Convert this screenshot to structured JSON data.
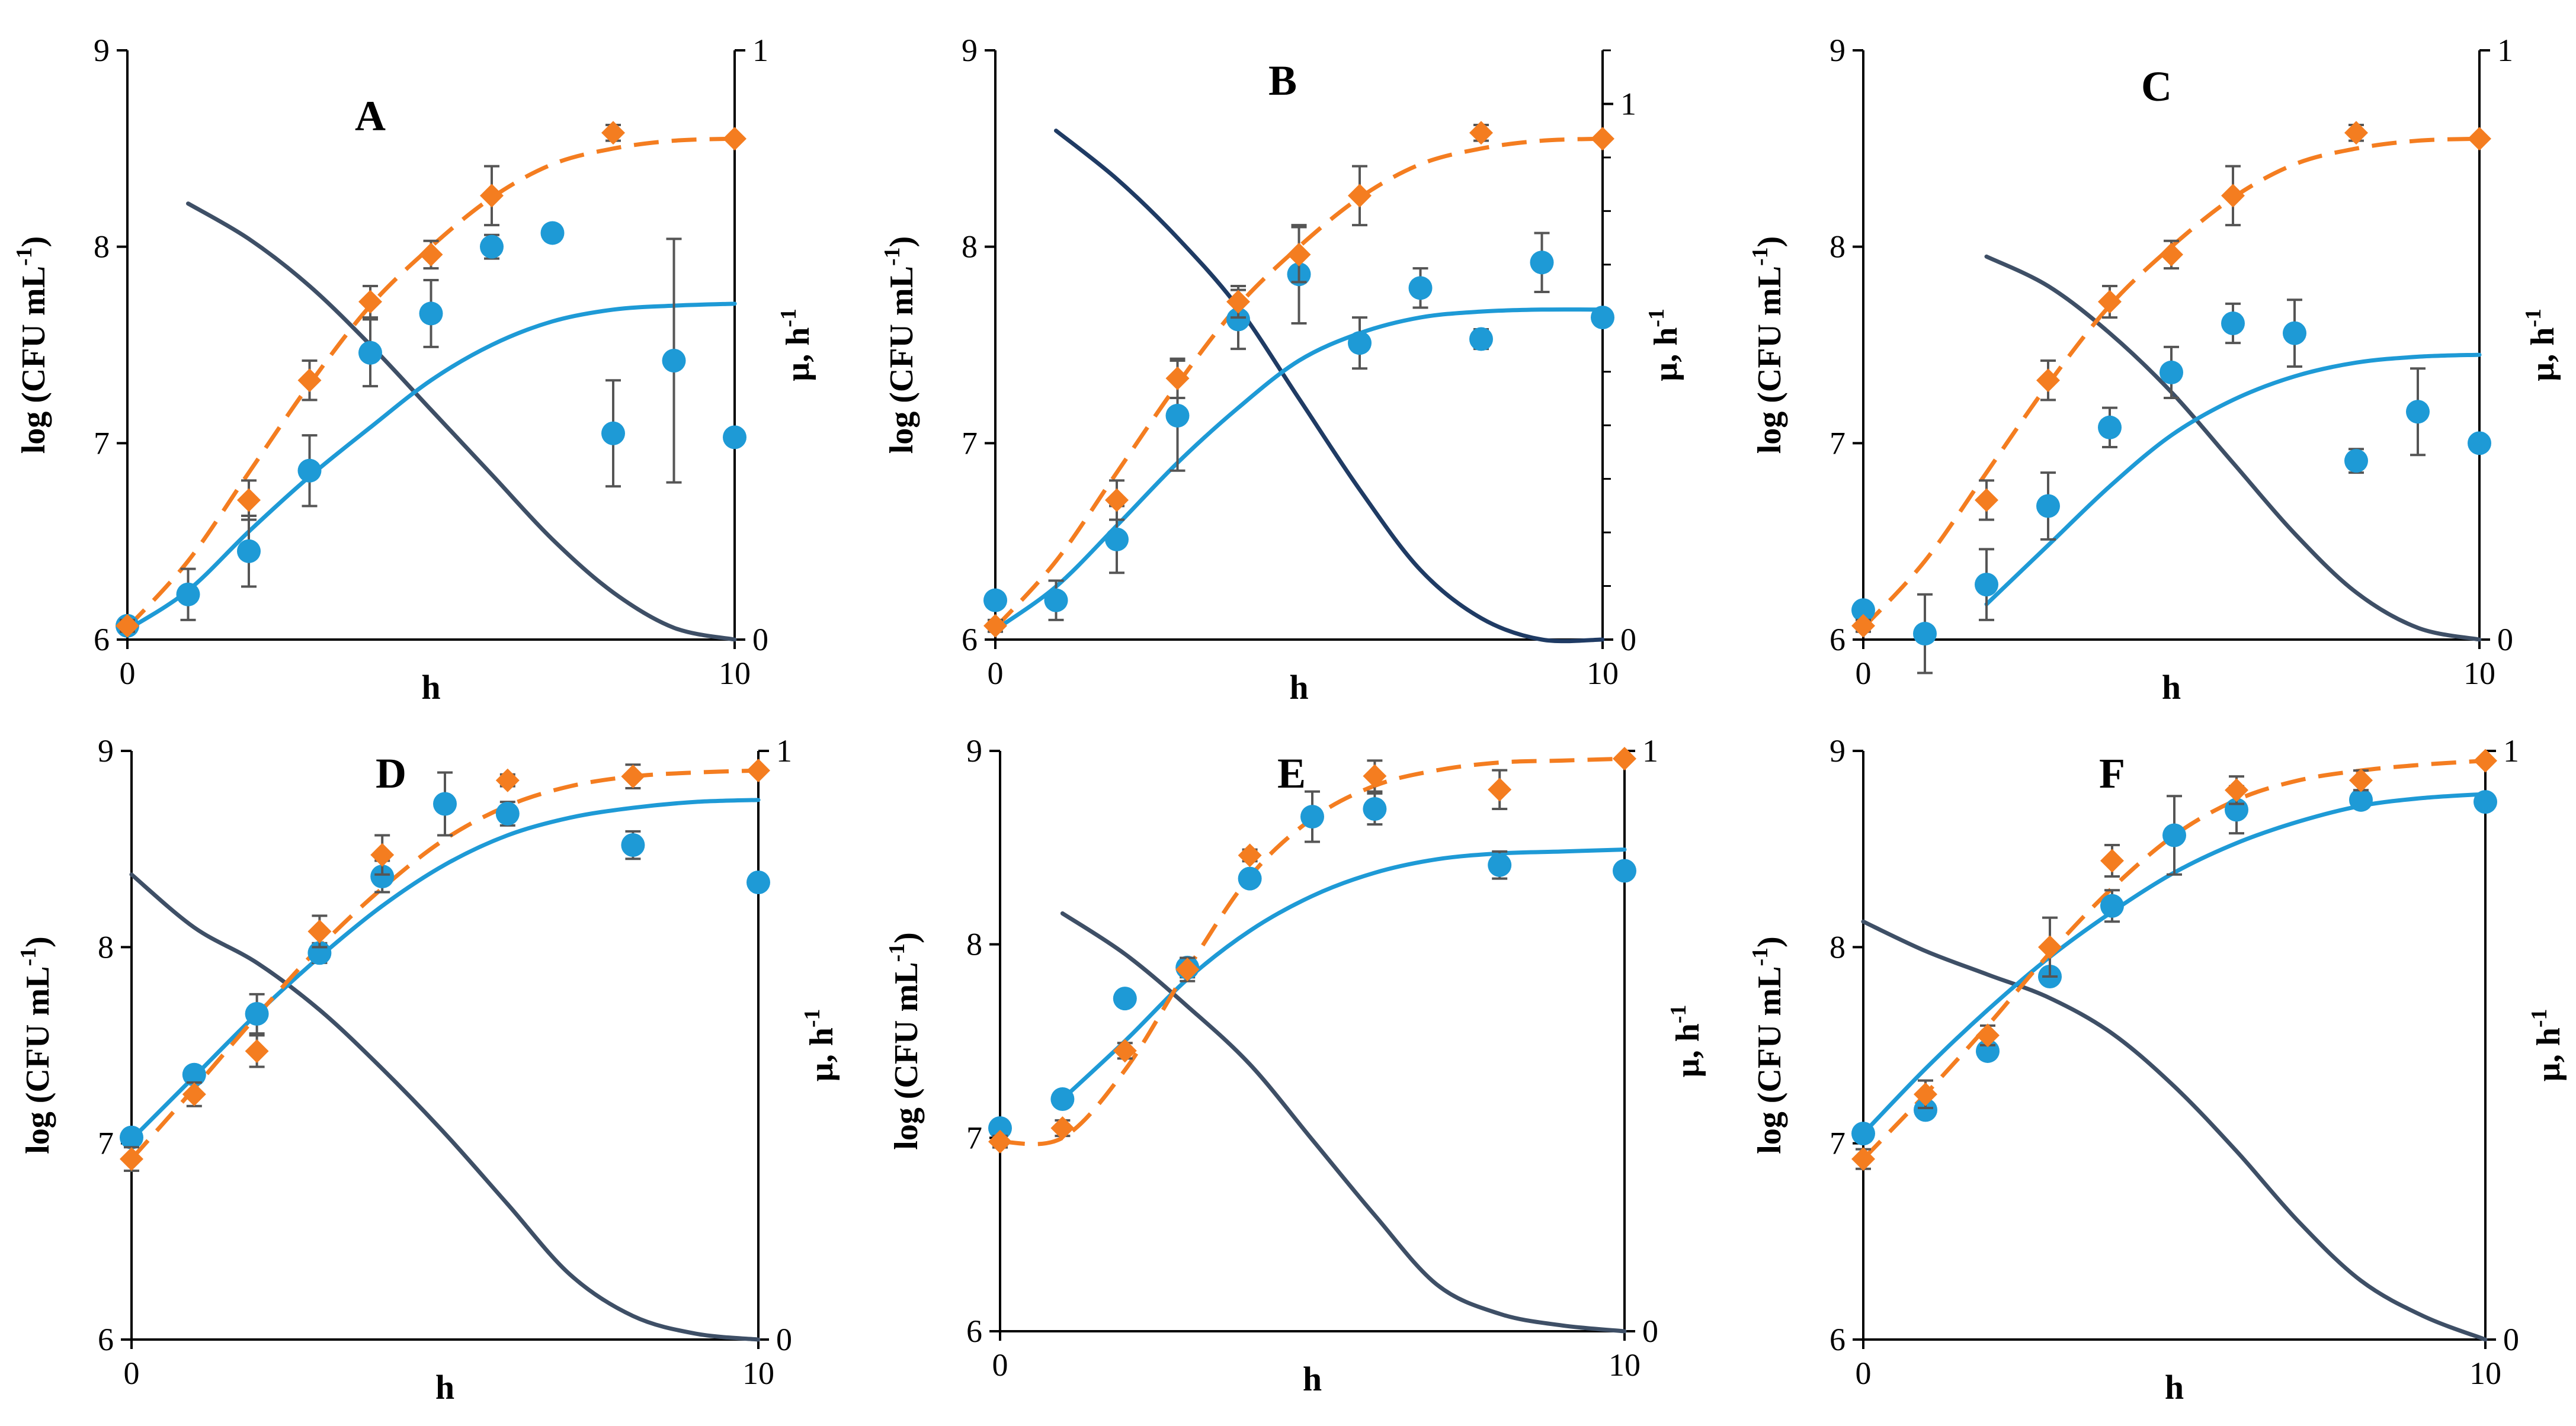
{
  "chart_data": [
    {
      "panel": "A",
      "type": "scatter",
      "xlabel": "h",
      "ylabel": "log (CFU mL",
      "ylabel_sup": "-1",
      "ylabel_close": ")",
      "y2label": "µ, h",
      "y2label_sup": "-1",
      "xlim": [
        0,
        10
      ],
      "ylim": [
        6,
        9
      ],
      "y2lim": [
        0,
        1
      ],
      "x_ticks": [
        0,
        10
      ],
      "y_ticks": [
        6,
        7,
        8,
        9
      ],
      "y2_ticks": [
        0,
        1
      ],
      "y2_ticks_minor": [],
      "colors": {
        "orange": "#F47D20",
        "blue": "#1E9AD6",
        "dark": "#3E4F66"
      },
      "series": [
        {
          "style": "orange-diamond",
          "x": [
            0,
            2,
            3,
            4,
            5,
            6,
            8,
            10
          ],
          "y": [
            6.07,
            6.71,
            7.32,
            7.72,
            7.96,
            8.26,
            8.58,
            8.55
          ],
          "err": [
            0.03,
            0.1,
            0.1,
            0.08,
            0.07,
            0.15,
            0.04,
            0.0
          ]
        },
        {
          "style": "orange-dashed-fit",
          "x": [
            0,
            1,
            2,
            3,
            4,
            5,
            6,
            7,
            8,
            9,
            10
          ],
          "y": [
            6.06,
            6.4,
            6.85,
            7.3,
            7.7,
            8.0,
            8.25,
            8.42,
            8.5,
            8.54,
            8.55
          ]
        },
        {
          "style": "blue-circle",
          "x": [
            0,
            1,
            2,
            3,
            4,
            5,
            6,
            7,
            8,
            9,
            10
          ],
          "y": [
            6.07,
            6.23,
            6.45,
            6.86,
            7.46,
            7.66,
            8.0,
            8.07,
            7.05,
            7.42,
            7.03
          ],
          "err": [
            0.0,
            0.13,
            0.18,
            0.18,
            0.17,
            0.17,
            0.06,
            0.04,
            0.27,
            0.62,
            0.0
          ]
        },
        {
          "style": "blue-fit",
          "x": [
            0,
            1,
            2,
            3,
            4,
            5,
            6,
            7,
            8,
            9,
            10
          ],
          "y": [
            6.05,
            6.25,
            6.55,
            6.83,
            7.08,
            7.32,
            7.5,
            7.62,
            7.68,
            7.7,
            7.71
          ]
        },
        {
          "style": "dark-rate",
          "axis": "right",
          "x": [
            1,
            2,
            3,
            4,
            5,
            6,
            7,
            8,
            9,
            10
          ],
          "y": [
            0.74,
            0.68,
            0.6,
            0.5,
            0.39,
            0.28,
            0.17,
            0.08,
            0.02,
            0.0
          ]
        }
      ]
    },
    {
      "panel": "B",
      "type": "scatter",
      "xlabel": "h",
      "ylabel": "log (CFU mL",
      "ylabel_sup": "-1",
      "ylabel_close": ")",
      "y2label": "µ, h",
      "y2label_sup": "-1",
      "xlim": [
        0,
        10
      ],
      "ylim": [
        6,
        9
      ],
      "y2lim": [
        0,
        1.1
      ],
      "x_ticks": [
        0,
        10
      ],
      "y_ticks": [
        6,
        7,
        8,
        9
      ],
      "y2_ticks": [
        0,
        1
      ],
      "y2_ticks_minor": [
        0.1,
        0.2,
        0.3,
        0.4,
        0.5,
        0.6,
        0.7,
        0.8,
        0.9,
        1.1
      ],
      "colors": {
        "orange": "#F47D20",
        "blue": "#1E9AD6",
        "dark": "#1F3B64"
      },
      "series": [
        {
          "style": "orange-diamond",
          "x": [
            0,
            2,
            3,
            4,
            5,
            6,
            8,
            10
          ],
          "y": [
            6.07,
            6.71,
            7.33,
            7.72,
            7.96,
            8.26,
            8.58,
            8.55
          ],
          "err": [
            0.03,
            0.1,
            0.1,
            0.08,
            0.14,
            0.15,
            0.04,
            0.0
          ]
        },
        {
          "style": "orange-dashed-fit",
          "x": [
            0,
            1,
            2,
            3,
            4,
            5,
            6,
            7,
            8,
            9,
            10
          ],
          "y": [
            6.06,
            6.4,
            6.85,
            7.3,
            7.7,
            8.0,
            8.25,
            8.42,
            8.5,
            8.54,
            8.55
          ]
        },
        {
          "style": "blue-circle",
          "x": [
            0,
            1,
            2,
            3,
            4,
            5,
            6,
            7,
            8,
            9,
            10
          ],
          "y": [
            6.2,
            6.2,
            6.51,
            7.14,
            7.63,
            7.86,
            7.51,
            7.79,
            7.53,
            7.92,
            7.64
          ],
          "err": [
            0.0,
            0.1,
            0.17,
            0.28,
            0.15,
            0.25,
            0.13,
            0.1,
            0.05,
            0.15,
            0.0
          ]
        },
        {
          "style": "blue-fit",
          "x": [
            0,
            1,
            2,
            3,
            4,
            5,
            6,
            7,
            8,
            9,
            10
          ],
          "y": [
            6.05,
            6.27,
            6.58,
            6.9,
            7.18,
            7.42,
            7.56,
            7.64,
            7.67,
            7.68,
            7.68
          ]
        },
        {
          "style": "dark-rate",
          "axis": "right",
          "x": [
            1,
            2,
            3,
            4,
            5,
            6,
            7,
            8,
            9,
            10
          ],
          "y": [
            0.95,
            0.86,
            0.75,
            0.62,
            0.45,
            0.28,
            0.13,
            0.04,
            0.0,
            0.0
          ]
        }
      ]
    },
    {
      "panel": "C",
      "type": "scatter",
      "xlabel": "h",
      "ylabel": "log (CFU mL",
      "ylabel_sup": "-1",
      "ylabel_close": ")",
      "y2label": "µ, h",
      "y2label_sup": "-1",
      "xlim": [
        0,
        10
      ],
      "ylim": [
        6,
        9
      ],
      "y2lim": [
        0,
        1
      ],
      "x_ticks": [
        0,
        10
      ],
      "y_ticks": [
        6,
        7,
        8,
        9
      ],
      "y2_ticks": [
        0,
        1
      ],
      "y2_ticks_minor": [],
      "colors": {
        "orange": "#F47D20",
        "blue": "#1E9AD6",
        "dark": "#3E4F66"
      },
      "series": [
        {
          "style": "orange-diamond",
          "x": [
            0,
            2,
            3,
            4,
            5,
            6,
            8,
            10
          ],
          "y": [
            6.07,
            6.71,
            7.32,
            7.72,
            7.96,
            8.26,
            8.58,
            8.55
          ],
          "err": [
            0.03,
            0.1,
            0.1,
            0.08,
            0.07,
            0.15,
            0.04,
            0.0
          ]
        },
        {
          "style": "orange-dashed-fit",
          "x": [
            0,
            1,
            2,
            3,
            4,
            5,
            6,
            7,
            8,
            9,
            10
          ],
          "y": [
            6.06,
            6.4,
            6.85,
            7.3,
            7.7,
            8.0,
            8.25,
            8.42,
            8.5,
            8.54,
            8.55
          ]
        },
        {
          "style": "blue-circle",
          "x": [
            0,
            1,
            2,
            3,
            4,
            5,
            6,
            7,
            8,
            9,
            10
          ],
          "y": [
            6.15,
            6.03,
            6.28,
            6.68,
            7.08,
            7.36,
            7.61,
            7.56,
            6.91,
            7.16,
            7.0
          ],
          "err": [
            0.0,
            0.2,
            0.18,
            0.17,
            0.1,
            0.13,
            0.1,
            0.17,
            0.06,
            0.22,
            0.0
          ]
        },
        {
          "style": "blue-fit",
          "x": [
            2,
            3,
            4,
            5,
            6,
            7,
            8,
            9,
            10
          ],
          "y": [
            6.18,
            6.48,
            6.78,
            7.04,
            7.22,
            7.34,
            7.41,
            7.44,
            7.45
          ]
        },
        {
          "style": "dark-rate",
          "axis": "right",
          "x": [
            2,
            3,
            4,
            5,
            6,
            7,
            8,
            9,
            10
          ],
          "y": [
            0.65,
            0.6,
            0.52,
            0.42,
            0.3,
            0.18,
            0.08,
            0.02,
            0.0
          ]
        }
      ]
    },
    {
      "panel": "D",
      "type": "scatter",
      "xlabel": "h",
      "ylabel": "log (CFU mL",
      "ylabel_sup": "-1",
      "ylabel_close": ")",
      "y2label": "µ, h",
      "y2label_sup": "-1",
      "xlim": [
        0,
        10
      ],
      "ylim": [
        6,
        9
      ],
      "y2lim": [
        0,
        1
      ],
      "x_ticks": [
        0,
        10
      ],
      "y_ticks": [
        6,
        7,
        8,
        9
      ],
      "y2_ticks": [
        0,
        1
      ],
      "y2_ticks_minor": [],
      "colors": {
        "orange": "#F47D20",
        "blue": "#1E9AD6",
        "dark": "#3E4F66"
      },
      "series": [
        {
          "style": "orange-diamond",
          "x": [
            0,
            1,
            2,
            3,
            4,
            6,
            8,
            10
          ],
          "y": [
            6.92,
            7.25,
            7.47,
            8.08,
            8.47,
            8.85,
            8.87,
            8.9
          ],
          "err": [
            0.06,
            0.06,
            0.08,
            0.08,
            0.1,
            0.03,
            0.06,
            0.0
          ]
        },
        {
          "style": "orange-dashed-fit",
          "x": [
            0,
            1,
            2,
            3,
            4,
            5,
            6,
            7,
            8,
            9,
            10
          ],
          "y": [
            6.92,
            7.28,
            7.65,
            8.0,
            8.3,
            8.55,
            8.72,
            8.82,
            8.87,
            8.89,
            8.9
          ]
        },
        {
          "style": "blue-circle",
          "x": [
            0,
            1,
            2,
            3,
            4,
            5,
            6,
            8,
            10
          ],
          "y": [
            7.03,
            7.35,
            7.66,
            7.97,
            8.36,
            8.73,
            8.68,
            8.52,
            8.33
          ],
          "err": [
            0.0,
            0.0,
            0.1,
            0.05,
            0.08,
            0.16,
            0.06,
            0.07,
            0.0
          ]
        },
        {
          "style": "blue-fit",
          "x": [
            0,
            1,
            2,
            3,
            4,
            5,
            6,
            7,
            8,
            9,
            10
          ],
          "y": [
            7.02,
            7.34,
            7.66,
            7.95,
            8.21,
            8.42,
            8.57,
            8.66,
            8.71,
            8.74,
            8.75
          ]
        },
        {
          "style": "dark-rate",
          "axis": "right",
          "x": [
            0,
            1,
            2,
            3,
            4,
            5,
            6,
            7,
            8,
            9,
            10
          ],
          "y": [
            0.79,
            0.7,
            0.64,
            0.56,
            0.46,
            0.35,
            0.23,
            0.11,
            0.04,
            0.01,
            0.0
          ]
        }
      ]
    },
    {
      "panel": "E",
      "type": "scatter",
      "xlabel": "h",
      "ylabel": "log (CFU mL",
      "ylabel_sup": "-1",
      "ylabel_close": ")",
      "y2label": "µ, h",
      "y2label_sup": "-1",
      "xlim": [
        0,
        10
      ],
      "ylim": [
        6,
        9
      ],
      "y2lim": [
        0,
        1
      ],
      "x_ticks": [
        0,
        10
      ],
      "y_ticks": [
        6,
        7,
        8,
        9
      ],
      "y2_ticks": [
        0,
        1
      ],
      "y2_ticks_minor": [],
      "colors": {
        "orange": "#F47D20",
        "blue": "#1E9AD6",
        "dark": "#3E4F66"
      },
      "series": [
        {
          "style": "orange-diamond",
          "x": [
            0,
            1,
            2,
            3,
            4,
            6,
            8,
            10
          ],
          "y": [
            6.98,
            7.05,
            7.45,
            7.87,
            8.46,
            8.87,
            8.8,
            8.96
          ],
          "err": [
            0.03,
            0.04,
            0.04,
            0.06,
            0.03,
            0.08,
            0.1,
            0.0
          ]
        },
        {
          "style": "orange-dashed-fit",
          "x": [
            0,
            1,
            2,
            3,
            4,
            5,
            6,
            7,
            8,
            9,
            10
          ],
          "y": [
            6.98,
            7.0,
            7.35,
            7.87,
            8.35,
            8.65,
            8.82,
            8.9,
            8.94,
            8.95,
            8.96
          ]
        },
        {
          "style": "blue-circle",
          "x": [
            0,
            1,
            2,
            3,
            4,
            5,
            6,
            8,
            10
          ],
          "y": [
            7.05,
            7.2,
            7.72,
            7.88,
            8.34,
            8.66,
            8.7,
            8.41,
            8.38
          ],
          "err": [
            0.0,
            0.0,
            0.0,
            0.05,
            0.03,
            0.13,
            0.08,
            0.07,
            0.0
          ]
        },
        {
          "style": "blue-fit",
          "x": [
            1,
            2,
            3,
            4,
            5,
            6,
            7,
            8,
            9,
            10
          ],
          "y": [
            7.2,
            7.5,
            7.82,
            8.07,
            8.25,
            8.37,
            8.44,
            8.47,
            8.48,
            8.49
          ]
        },
        {
          "style": "dark-rate",
          "axis": "right",
          "x": [
            1,
            2,
            3,
            4,
            5,
            6,
            7,
            8,
            9,
            10
          ],
          "y": [
            0.72,
            0.65,
            0.56,
            0.46,
            0.33,
            0.2,
            0.08,
            0.03,
            0.01,
            0.0
          ]
        }
      ]
    },
    {
      "panel": "F",
      "type": "scatter",
      "xlabel": "h",
      "ylabel": "log (CFU mL",
      "ylabel_sup": "-1",
      "ylabel_close": ")",
      "y2label": "µ, h",
      "y2label_sup": "-1",
      "xlim": [
        0,
        10
      ],
      "ylim": [
        6,
        9
      ],
      "y2lim": [
        0,
        1
      ],
      "x_ticks": [
        0,
        10
      ],
      "y_ticks": [
        6,
        7,
        8,
        9
      ],
      "y2_ticks": [
        0,
        1
      ],
      "y2_ticks_minor": [],
      "colors": {
        "orange": "#F47D20",
        "blue": "#1E9AD6",
        "dark": "#3E4F66"
      },
      "series": [
        {
          "style": "orange-diamond",
          "x": [
            0,
            1,
            2,
            3,
            4,
            6,
            8,
            10
          ],
          "y": [
            6.92,
            7.25,
            7.55,
            8.0,
            8.44,
            8.8,
            8.85,
            8.95
          ],
          "err": [
            0.05,
            0.07,
            0.05,
            0.15,
            0.08,
            0.07,
            0.05,
            0.0
          ]
        },
        {
          "style": "orange-dashed-fit",
          "x": [
            0,
            1,
            2,
            3,
            4,
            5,
            6,
            7,
            8,
            9,
            10
          ],
          "y": [
            6.92,
            7.25,
            7.6,
            7.97,
            8.3,
            8.57,
            8.75,
            8.85,
            8.9,
            8.93,
            8.95
          ]
        },
        {
          "style": "blue-circle",
          "x": [
            0,
            1,
            2,
            3,
            4,
            5,
            6,
            8,
            10
          ],
          "y": [
            7.05,
            7.17,
            7.47,
            7.85,
            8.21,
            8.57,
            8.7,
            8.75,
            8.74
          ],
          "err": [
            0.0,
            0.0,
            0.0,
            0.0,
            0.08,
            0.2,
            0.12,
            0.0,
            0.0
          ]
        },
        {
          "style": "blue-fit",
          "x": [
            0,
            1,
            2,
            3,
            4,
            5,
            6,
            7,
            8,
            9,
            10
          ],
          "y": [
            7.05,
            7.38,
            7.68,
            7.95,
            8.18,
            8.38,
            8.53,
            8.64,
            8.72,
            8.76,
            8.78
          ]
        },
        {
          "style": "dark-rate",
          "axis": "right",
          "x": [
            0,
            1,
            2,
            3,
            4,
            5,
            6,
            7,
            8,
            9,
            10
          ],
          "y": [
            0.71,
            0.66,
            0.62,
            0.58,
            0.52,
            0.43,
            0.32,
            0.2,
            0.1,
            0.04,
            0.0
          ]
        }
      ]
    }
  ]
}
